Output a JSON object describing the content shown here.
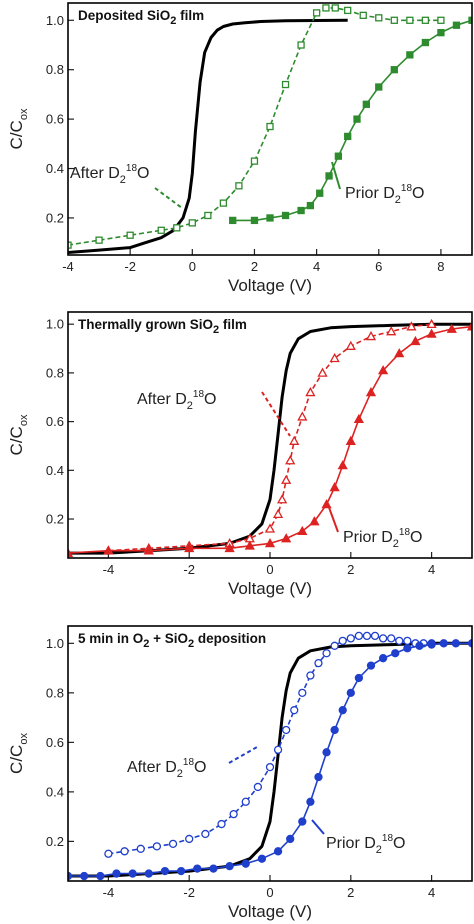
{
  "chart_data": [
    {
      "type": "line",
      "title": "Deposited SiO",
      "title_sub": "2",
      "title_rest": " film",
      "ylabel": "C/C",
      "ylabel_sub": "ox",
      "xlabel": "Voltage (V)",
      "xlim": [
        -4,
        9
      ],
      "ylim": [
        0.05,
        1.07
      ],
      "xticks": [
        "-4",
        "-2",
        "0",
        "2",
        "4",
        "6",
        "8"
      ],
      "xtick_values": [
        -4,
        -2,
        0,
        2,
        4,
        6,
        8
      ],
      "yticks": [
        "0.2",
        "0.4",
        "0.6",
        "0.8",
        "1.0"
      ],
      "ytick_values": [
        0.2,
        0.4,
        0.6,
        0.8,
        1.0
      ],
      "color": "#2e8b2e",
      "series": [
        {
          "style": "black-line",
          "x": [
            -4,
            -3,
            -2,
            -1.5,
            -1,
            -0.6,
            -0.3,
            -0.1,
            0,
            0.1,
            0.25,
            0.4,
            0.6,
            0.8,
            1.0,
            1.3,
            1.7,
            2.2,
            3,
            4,
            5
          ],
          "y": [
            0.06,
            0.07,
            0.08,
            0.1,
            0.12,
            0.15,
            0.2,
            0.28,
            0.38,
            0.55,
            0.75,
            0.87,
            0.93,
            0.96,
            0.975,
            0.985,
            0.99,
            0.995,
            0.998,
            0.999,
            1.0
          ]
        },
        {
          "style": "open-square-dashed",
          "x": [
            -4,
            -3,
            -2,
            -1,
            -0.5,
            0,
            0.5,
            1,
            1.5,
            2,
            2.5,
            3,
            3.5,
            4,
            4.3,
            4.6,
            5,
            5.5,
            6,
            6.5,
            7,
            7.5,
            8
          ],
          "y": [
            0.09,
            0.11,
            0.13,
            0.15,
            0.16,
            0.18,
            0.21,
            0.26,
            0.33,
            0.43,
            0.57,
            0.74,
            0.9,
            1.03,
            1.05,
            1.05,
            1.04,
            1.02,
            1.01,
            1.0,
            1.0,
            1.0,
            1.0
          ]
        },
        {
          "style": "filled-square-solid",
          "x": [
            1.3,
            2,
            2.5,
            3,
            3.5,
            3.8,
            4.1,
            4.4,
            4.7,
            5,
            5.3,
            5.6,
            6,
            6.5,
            7,
            7.5,
            8,
            8.5,
            9
          ],
          "y": [
            0.19,
            0.19,
            0.2,
            0.21,
            0.23,
            0.25,
            0.3,
            0.37,
            0.45,
            0.53,
            0.6,
            0.66,
            0.73,
            0.8,
            0.86,
            0.91,
            0.95,
            0.98,
            1.0
          ]
        }
      ],
      "annotations": [
        {
          "label": "After D",
          "sub": "2",
          "sup": "18",
          "rest": "O"
        },
        {
          "label": "Prior D",
          "sub": "2",
          "sup": "18",
          "rest": "O"
        }
      ]
    },
    {
      "type": "line",
      "title": "Thermally grown SiO",
      "title_sub": "2",
      "title_rest": " film",
      "ylabel": "C/C",
      "ylabel_sub": "ox",
      "xlabel": "Voltage (V)",
      "xlim": [
        -5,
        5
      ],
      "ylim": [
        0.04,
        1.05
      ],
      "xticks": [
        "-4",
        "-2",
        "0",
        "2",
        "4"
      ],
      "xtick_values": [
        -4,
        -2,
        0,
        2,
        4
      ],
      "yticks": [
        "0.2",
        "0.4",
        "0.6",
        "0.8",
        "1.0"
      ],
      "ytick_values": [
        0.2,
        0.4,
        0.6,
        0.8,
        1.0
      ],
      "color": "#dd2222",
      "series": [
        {
          "style": "black-line",
          "x": [
            -5,
            -4,
            -3,
            -2,
            -1,
            -0.5,
            -0.2,
            0,
            0.1,
            0.2,
            0.3,
            0.4,
            0.5,
            0.7,
            1,
            1.5,
            2,
            3,
            4,
            5
          ],
          "y": [
            0.06,
            0.06,
            0.07,
            0.08,
            0.1,
            0.13,
            0.18,
            0.28,
            0.4,
            0.55,
            0.7,
            0.81,
            0.88,
            0.94,
            0.97,
            0.985,
            0.99,
            0.995,
            1.0,
            1.0
          ]
        },
        {
          "style": "open-triangle-dashed",
          "x": [
            -4,
            -3,
            -2,
            -1,
            -0.5,
            0,
            0.2,
            0.3,
            0.4,
            0.5,
            0.6,
            0.8,
            1,
            1.3,
            1.6,
            2,
            2.5,
            3,
            3.5,
            4
          ],
          "y": [
            0.07,
            0.08,
            0.09,
            0.1,
            0.12,
            0.16,
            0.22,
            0.28,
            0.36,
            0.44,
            0.52,
            0.62,
            0.72,
            0.8,
            0.86,
            0.91,
            0.95,
            0.97,
            0.99,
            1.0
          ]
        },
        {
          "style": "filled-triangle-solid",
          "x": [
            -5,
            -4,
            -3,
            -2,
            -1,
            -0.5,
            0,
            0.4,
            0.8,
            1.1,
            1.4,
            1.6,
            1.8,
            2,
            2.2,
            2.5,
            2.8,
            3.2,
            3.6,
            4,
            4.5,
            5
          ],
          "y": [
            0.06,
            0.07,
            0.07,
            0.08,
            0.08,
            0.09,
            0.1,
            0.12,
            0.15,
            0.19,
            0.26,
            0.33,
            0.42,
            0.52,
            0.61,
            0.72,
            0.81,
            0.88,
            0.93,
            0.96,
            0.98,
            0.99
          ]
        }
      ],
      "annotations": [
        {
          "label": "After D",
          "sub": "2",
          "sup": "18",
          "rest": "O"
        },
        {
          "label": "Prior D",
          "sub": "2",
          "sup": "18",
          "rest": "O"
        }
      ]
    },
    {
      "type": "line",
      "title": "5 min in O",
      "title_sub": "2",
      "title_rest": " + SiO",
      "title_sub2": "2",
      "title_rest2": " deposition",
      "ylabel": "C/C",
      "ylabel_sub": "ox",
      "xlabel": "Voltage (V)",
      "xlim": [
        -5,
        5
      ],
      "ylim": [
        0.04,
        1.07
      ],
      "xticks": [
        "-4",
        "-2",
        "0",
        "2",
        "4"
      ],
      "xtick_values": [
        -4,
        -2,
        0,
        2,
        4
      ],
      "yticks": [
        "0.2",
        "0.4",
        "0.6",
        "0.8",
        "1.0"
      ],
      "ytick_values": [
        0.2,
        0.4,
        0.6,
        0.8,
        1.0
      ],
      "color": "#1f3fcc",
      "series": [
        {
          "style": "black-line",
          "x": [
            -5,
            -4,
            -3,
            -2,
            -1,
            -0.5,
            -0.2,
            0,
            0.1,
            0.2,
            0.3,
            0.4,
            0.5,
            0.7,
            1,
            1.5,
            2,
            3,
            4,
            5
          ],
          "y": [
            0.06,
            0.06,
            0.07,
            0.08,
            0.1,
            0.13,
            0.18,
            0.28,
            0.4,
            0.55,
            0.7,
            0.81,
            0.88,
            0.94,
            0.97,
            0.985,
            0.99,
            0.995,
            1.0,
            1.0
          ]
        },
        {
          "style": "open-circle-dashed",
          "x": [
            -4,
            -3.6,
            -3.2,
            -2.8,
            -2.4,
            -2,
            -1.6,
            -1.2,
            -0.9,
            -0.6,
            -0.3,
            0,
            0.2,
            0.4,
            0.6,
            0.8,
            1,
            1.2,
            1.4,
            1.6,
            1.8,
            2,
            2.2,
            2.4,
            2.6,
            2.8,
            3,
            3.2,
            3.4,
            3.6,
            3.8,
            4
          ],
          "y": [
            0.15,
            0.16,
            0.17,
            0.18,
            0.19,
            0.21,
            0.23,
            0.27,
            0.31,
            0.36,
            0.42,
            0.5,
            0.57,
            0.65,
            0.73,
            0.8,
            0.87,
            0.92,
            0.96,
            0.99,
            1.01,
            1.02,
            1.03,
            1.03,
            1.03,
            1.02,
            1.02,
            1.01,
            1.01,
            1.0,
            1.0,
            1.0
          ]
        },
        {
          "style": "filled-circle-solid",
          "x": [
            -5,
            -4.6,
            -4.2,
            -3.8,
            -3.4,
            -3,
            -2.6,
            -2.2,
            -1.8,
            -1.4,
            -1,
            -0.6,
            -0.2,
            0.2,
            0.5,
            0.8,
            1,
            1.2,
            1.4,
            1.6,
            1.8,
            2,
            2.2,
            2.5,
            2.8,
            3.1,
            3.4,
            3.7,
            4,
            4.3,
            4.6,
            5
          ],
          "y": [
            0.06,
            0.06,
            0.06,
            0.07,
            0.07,
            0.07,
            0.08,
            0.08,
            0.09,
            0.09,
            0.1,
            0.11,
            0.13,
            0.16,
            0.21,
            0.28,
            0.36,
            0.46,
            0.56,
            0.65,
            0.73,
            0.8,
            0.86,
            0.91,
            0.94,
            0.96,
            0.98,
            0.99,
            0.995,
            1.0,
            1.0,
            1.0
          ]
        }
      ],
      "annotations": [
        {
          "label": "After D",
          "sub": "2",
          "sup": "18",
          "rest": "O"
        },
        {
          "label": "Prior D",
          "sub": "2",
          "sup": "18",
          "rest": "O"
        }
      ]
    }
  ]
}
